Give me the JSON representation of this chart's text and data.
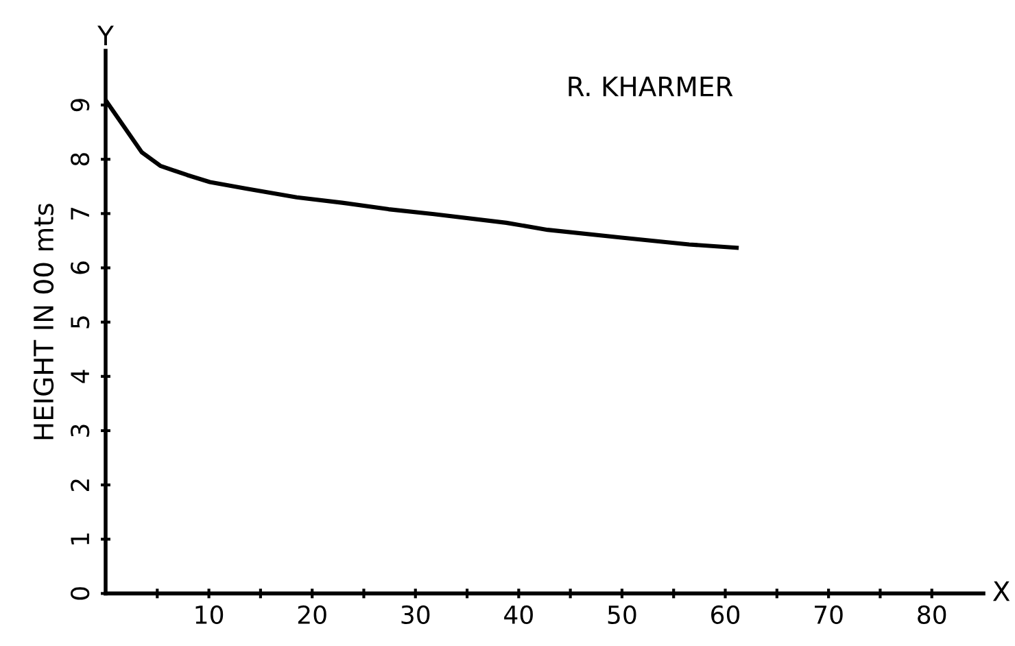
{
  "chart_data": {
    "type": "line",
    "title": "R. KHARMER",
    "ylabel": "HEIGHT IN 00 mts",
    "annotations": [
      "Y",
      "X"
    ],
    "series": [
      {
        "color": "#000000",
        "x": [
          0,
          3.5,
          5.3,
          7.9,
          10.1,
          13.6,
          18.5,
          22.9,
          27.4,
          31.8,
          38.8,
          42.8,
          49.8,
          56.5,
          61.1
        ],
        "values": [
          9.09,
          8.13,
          7.88,
          7.71,
          7.58,
          7.46,
          7.3,
          7.2,
          7.08,
          6.99,
          6.83,
          6.7,
          6.56,
          6.43,
          6.37
        ]
      }
    ],
    "xlim": [
      0,
      85
    ],
    "ylim": [
      0,
      10
    ],
    "xticks": [
      {
        "value": 5,
        "label": null
      },
      10,
      {
        "value": 15,
        "label": null
      },
      20,
      {
        "value": 25,
        "label": null
      },
      30,
      {
        "value": 35,
        "label": null
      },
      40,
      {
        "value": 45,
        "label": null
      },
      50,
      {
        "value": 55,
        "label": null
      },
      60,
      {
        "value": 65,
        "label": null
      },
      70,
      {
        "value": 75,
        "label": null
      },
      80
    ],
    "yticks": [
      0,
      1,
      2,
      3,
      4,
      5,
      6,
      7,
      8,
      9
    ],
    "grid": false,
    "legend": false,
    "marker": "none",
    "line_style": "solid"
  }
}
